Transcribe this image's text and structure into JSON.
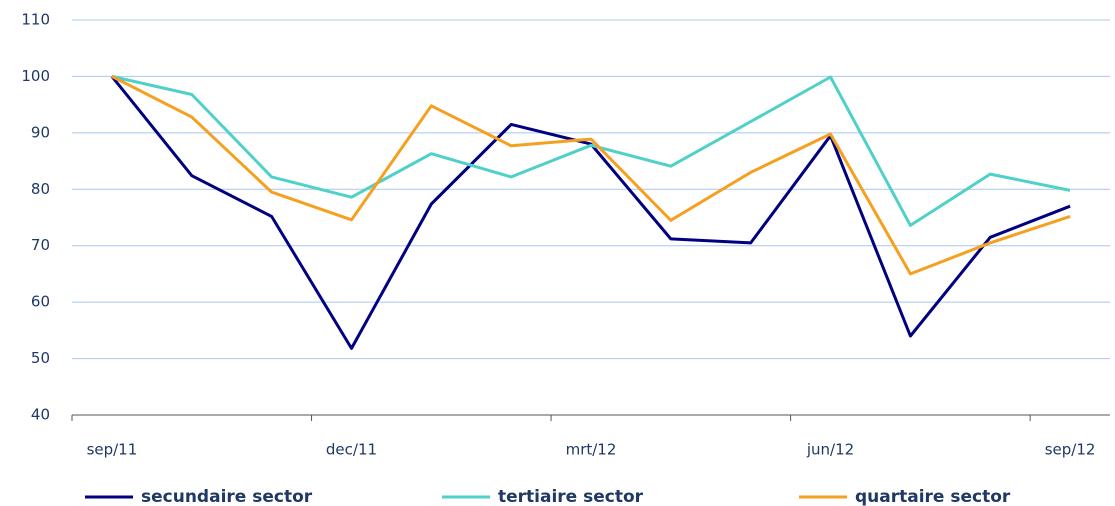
{
  "chart_data": {
    "type": "line",
    "categories": [
      "sep/11",
      null,
      null,
      "dec/11",
      null,
      null,
      "mrt/12",
      null,
      null,
      "jun/12",
      null,
      null,
      "sep/12"
    ],
    "series": [
      {
        "name": "secundaire sector",
        "color": "#000080",
        "values": [
          100,
          82.4,
          75.2,
          51.8,
          77.4,
          91.5,
          88,
          71.2,
          70.5,
          89.5,
          54,
          71.5,
          77
        ]
      },
      {
        "name": "tertiaire sector",
        "color": "#4fd0c8",
        "values": [
          100,
          96.8,
          82.2,
          78.6,
          86.3,
          82.2,
          87.8,
          84.1,
          92,
          99.9,
          73.6,
          82.7,
          79.8
        ]
      },
      {
        "name": "quartaire sector",
        "color": "#f5a020",
        "values": [
          100,
          92.8,
          79.5,
          74.6,
          94.8,
          87.7,
          88.9,
          74.5,
          83,
          89.8,
          65,
          70.5,
          75.2
        ]
      }
    ],
    "ylim": [
      40,
      110
    ],
    "yticks": [
      40,
      50,
      60,
      70,
      80,
      90,
      100,
      110
    ],
    "grid": true,
    "legend": "bottom"
  }
}
